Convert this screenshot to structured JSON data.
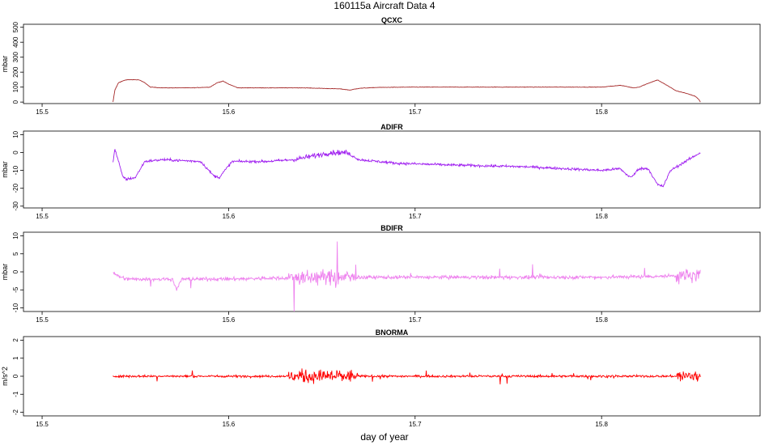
{
  "figure": {
    "title": "160115a   Aircraft Data 4",
    "xlabel": "day of year"
  },
  "chart_data": [
    {
      "type": "line",
      "title": "QCXC",
      "ylabel": "mbar",
      "color": "#a52a2a",
      "xlim": [
        15.49,
        15.885
      ],
      "ylim": [
        -10,
        520
      ],
      "xticks": [
        15.5,
        15.6,
        15.7,
        15.8
      ],
      "xtick_labels": [
        "15.5",
        "15.6",
        "15.7",
        "15.8"
      ],
      "yticks": [
        0,
        100,
        200,
        300,
        400,
        500
      ],
      "ytick_labels": [
        "0",
        "100",
        "200",
        "300",
        "400",
        "500"
      ],
      "noise": 1.5,
      "series": [
        {
          "x": [
            15.538,
            15.539,
            15.541,
            15.543,
            15.545,
            15.548,
            15.552,
            15.555,
            15.558,
            15.565,
            15.58,
            15.59,
            15.594,
            15.597,
            15.6,
            15.605,
            15.62,
            15.64,
            15.66,
            15.665,
            15.67,
            15.68,
            15.7,
            15.75,
            15.8,
            15.81,
            15.813,
            15.817,
            15.82,
            15.826,
            15.83,
            15.836,
            15.84,
            15.845,
            15.85,
            15.852,
            15.853
          ],
          "y": [
            0,
            80,
            130,
            140,
            148,
            150,
            148,
            130,
            100,
            95,
            95,
            100,
            130,
            140,
            120,
            95,
            95,
            95,
            88,
            80,
            92,
            98,
            100,
            100,
            100,
            112,
            105,
            95,
            100,
            130,
            148,
            105,
            75,
            60,
            40,
            20,
            0
          ]
        }
      ]
    },
    {
      "type": "line",
      "title": "ADIFR",
      "ylabel": "mbar",
      "color": "#a020f0",
      "xlim": [
        15.49,
        15.885
      ],
      "ylim": [
        -31,
        12
      ],
      "xticks": [
        15.5,
        15.6,
        15.7,
        15.8
      ],
      "xtick_labels": [
        "15.5",
        "15.6",
        "15.7",
        "15.8"
      ],
      "yticks": [
        -30,
        -20,
        -10,
        0,
        10
      ],
      "ytick_labels": [
        "-30",
        "-20",
        "-10",
        "0",
        "10"
      ],
      "noise": 0.7,
      "series": [
        {
          "x": [
            15.538,
            15.539,
            15.541,
            15.543,
            15.545,
            15.55,
            15.555,
            15.565,
            15.585,
            15.592,
            15.595,
            15.598,
            15.602,
            15.62,
            15.635,
            15.645,
            15.655,
            15.663,
            15.67,
            15.69,
            15.72,
            15.76,
            15.8,
            15.81,
            15.813,
            15.816,
            15.82,
            15.825,
            15.83,
            15.833,
            15.837,
            15.845,
            15.853
          ],
          "y": [
            -5,
            2,
            -5,
            -13,
            -15,
            -14,
            -5,
            -4,
            -5,
            -13,
            -14,
            -10,
            -5,
            -5,
            -4,
            -2,
            0,
            0,
            -4,
            -6,
            -7,
            -8,
            -10,
            -9,
            -12,
            -14,
            -9,
            -9,
            -18,
            -19,
            -10,
            -5,
            0
          ]
        }
      ]
    },
    {
      "type": "line",
      "title": "BDIFR",
      "ylabel": "mbar",
      "color": "#ee82ee",
      "xlim": [
        15.49,
        15.885
      ],
      "ylim": [
        -11,
        11
      ],
      "xticks": [
        15.5,
        15.6,
        15.7,
        15.8
      ],
      "xtick_labels": [
        "15.5",
        "15.6",
        "15.7",
        "15.8"
      ],
      "yticks": [
        -10,
        -5,
        0,
        5,
        10
      ],
      "ytick_labels": [
        "-10",
        "-5",
        "0",
        "5",
        "10"
      ],
      "noise": 0.5,
      "series": [
        {
          "x": [
            15.538,
            15.54,
            15.545,
            15.57,
            15.572,
            15.575,
            15.6,
            15.65,
            15.7,
            15.75,
            15.8,
            15.853
          ],
          "y": [
            0,
            -1,
            -2,
            -2,
            -5,
            -2,
            -2,
            -1.5,
            -1.5,
            -1.5,
            -1.5,
            -1
          ]
        }
      ]
    },
    {
      "type": "line",
      "title": "BNORMA",
      "ylabel": "m/s^2",
      "color": "#ff0000",
      "xlim": [
        15.49,
        15.885
      ],
      "ylim": [
        -2.2,
        2.2
      ],
      "xticks": [
        15.5,
        15.6,
        15.7,
        15.8
      ],
      "xtick_labels": [
        "15.5",
        "15.6",
        "15.7",
        "15.8"
      ],
      "yticks": [
        -2,
        -1,
        0,
        1,
        2
      ],
      "ytick_labels": [
        "-2",
        "-1",
        "0",
        "1",
        "2"
      ],
      "noise": 0.06,
      "series": [
        {
          "x": [
            15.538,
            15.853
          ],
          "y": [
            0,
            0
          ]
        }
      ]
    }
  ]
}
